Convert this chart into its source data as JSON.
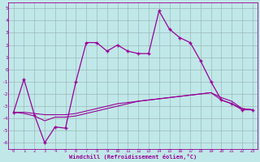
{
  "xlabel": "Windchill (Refroidissement éolien,°C)",
  "xlim": [
    -0.5,
    23.5
  ],
  "ylim": [
    -6.5,
    5.5
  ],
  "yticks": [
    -6,
    -5,
    -4,
    -3,
    -2,
    -1,
    0,
    1,
    2,
    3,
    4,
    5
  ],
  "xticks": [
    0,
    1,
    2,
    3,
    4,
    5,
    6,
    7,
    8,
    9,
    10,
    11,
    12,
    13,
    14,
    15,
    16,
    17,
    18,
    19,
    20,
    21,
    22,
    23
  ],
  "bg_color": "#c0e8e8",
  "grid_color": "#9dbaba",
  "line_color": "#990099",
  "line1_x": [
    0,
    1,
    2,
    3,
    4,
    5,
    6,
    7,
    8,
    9,
    10,
    11,
    12,
    13,
    14,
    15,
    16,
    17,
    18,
    19,
    20,
    21,
    22,
    23
  ],
  "line1_y": [
    -3.5,
    -0.8,
    -3.7,
    -6.0,
    -4.7,
    -4.8,
    -1.0,
    2.2,
    2.2,
    1.5,
    2.0,
    1.5,
    1.3,
    1.3,
    4.8,
    3.3,
    2.6,
    2.2,
    0.7,
    -1.0,
    -2.5,
    -2.8,
    -3.3,
    -3.3
  ],
  "line2_x": [
    0,
    1,
    2,
    3,
    4,
    5,
    6,
    7,
    8,
    9,
    10,
    11,
    12,
    13,
    14,
    15,
    16,
    17,
    18,
    19,
    20,
    21,
    22,
    23
  ],
  "line2_y": [
    -3.5,
    -3.5,
    -3.6,
    -3.7,
    -3.7,
    -3.7,
    -3.6,
    -3.4,
    -3.2,
    -3.0,
    -2.8,
    -2.7,
    -2.6,
    -2.5,
    -2.4,
    -2.3,
    -2.2,
    -2.1,
    -2.0,
    -1.9,
    -2.3,
    -2.6,
    -3.2,
    -3.3
  ],
  "line3_x": [
    0,
    1,
    2,
    3,
    4,
    5,
    6,
    7,
    8,
    9,
    10,
    11,
    12,
    13,
    14,
    15,
    16,
    17,
    18,
    19,
    20,
    21,
    22,
    23
  ],
  "line3_y": [
    -3.5,
    -3.6,
    -3.8,
    -4.2,
    -3.9,
    -3.9,
    -3.8,
    -3.6,
    -3.4,
    -3.2,
    -3.0,
    -2.8,
    -2.6,
    -2.5,
    -2.4,
    -2.3,
    -2.2,
    -2.1,
    -2.0,
    -1.9,
    -2.5,
    -2.8,
    -3.2,
    -3.3
  ]
}
